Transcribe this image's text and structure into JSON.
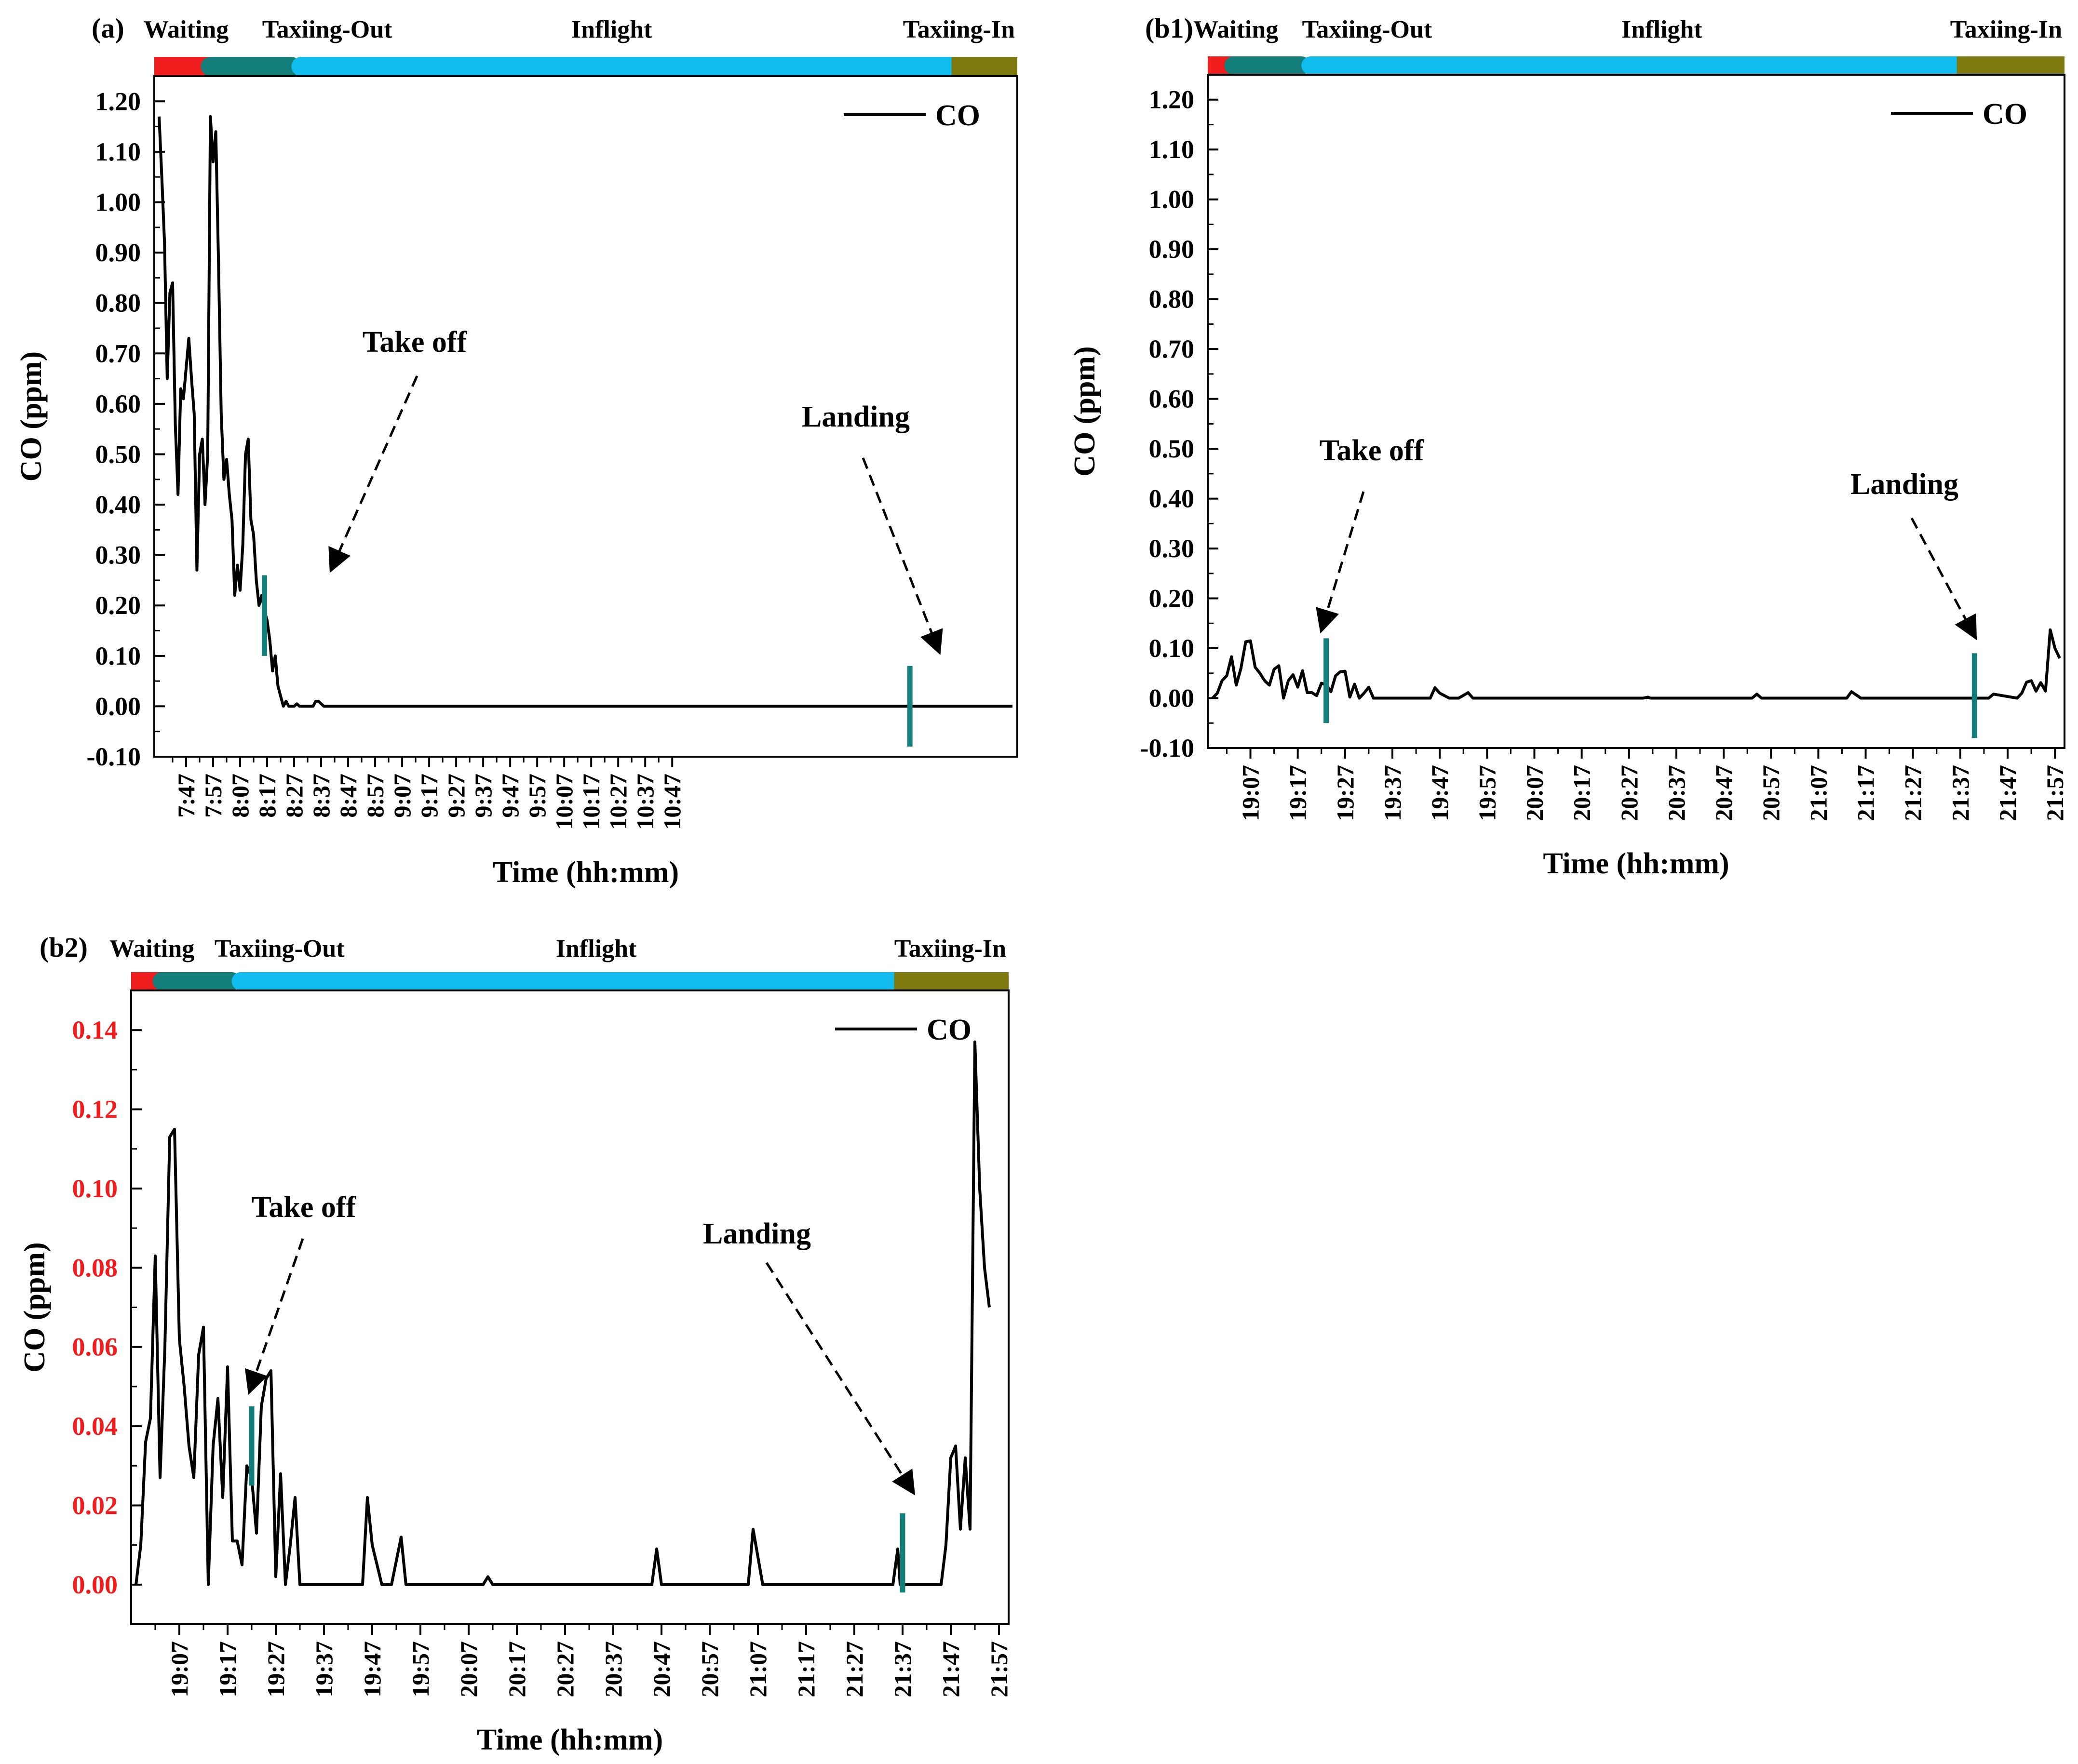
{
  "chart_data": [
    {
      "id": "a",
      "type": "line",
      "panel_label": "(a)",
      "phases": [
        {
          "name": "Waiting",
          "color": "#ee1c1c",
          "start": 0.0,
          "end": 0.065
        },
        {
          "name": "Taxiing-Out",
          "color": "#147f7a",
          "start": 0.065,
          "end": 0.17
        },
        {
          "name": "Inflight",
          "color": "#10bbee",
          "start": 0.17,
          "end": 0.935
        },
        {
          "name": "Taxiing-In",
          "color": "#7f7a10",
          "start": 0.935,
          "end": 1.0
        }
      ],
      "xlabel": "Time (hh:mm)",
      "ylabel": "CO (ppm)",
      "ylim": [
        -0.1,
        1.25
      ],
      "yticks": [
        "-0.10",
        "0.00",
        "0.10",
        "0.20",
        "0.30",
        "0.40",
        "0.50",
        "0.60",
        "0.70",
        "0.80",
        "0.90",
        "1.00",
        "1.10",
        "1.20"
      ],
      "ytick_color": "#000000",
      "xlim": [
        457,
        773
      ],
      "xticks": [
        "7:47",
        "7:57",
        "8:07",
        "8:17",
        "8:27",
        "8:37",
        "8:47",
        "8:57",
        "9:07",
        "9:17",
        "9:27",
        "9:37",
        "9:47",
        "9:57",
        "10:07",
        "10:17",
        "10:27",
        "10:37",
        "10:47"
      ],
      "xtick_values": [
        467,
        477,
        487,
        497,
        507,
        517,
        527,
        537,
        547,
        557,
        567,
        577,
        587,
        597,
        607,
        617,
        627,
        637,
        647
      ],
      "legend": "CO",
      "series": [
        {
          "name": "CO",
          "color": "#000000",
          "x": [
            457,
            458,
            459,
            460,
            461,
            462,
            463,
            464,
            465,
            466,
            467,
            468,
            469,
            470,
            471,
            472,
            473,
            474,
            475,
            476,
            477,
            478,
            479,
            480,
            481,
            482,
            483,
            484,
            485,
            486,
            487,
            488,
            489,
            490,
            491,
            492,
            493,
            494,
            495,
            496,
            497,
            498,
            499,
            500,
            501,
            502,
            503,
            504,
            505,
            506,
            507,
            508,
            509,
            510,
            511,
            512,
            513,
            514,
            515,
            516,
            517,
            518,
            519,
            520,
            521,
            522,
            523,
            525,
            530,
            540,
            560,
            600,
            640,
            660,
            680,
            700,
            720,
            740,
            773
          ],
          "y": [
            1.17,
            1.05,
            0.92,
            0.65,
            0.82,
            0.84,
            0.56,
            0.42,
            0.63,
            0.61,
            0.67,
            0.73,
            0.65,
            0.58,
            0.27,
            0.5,
            0.53,
            0.4,
            0.5,
            1.17,
            1.08,
            1.14,
            0.88,
            0.58,
            0.45,
            0.49,
            0.42,
            0.37,
            0.22,
            0.28,
            0.23,
            0.32,
            0.5,
            0.53,
            0.37,
            0.34,
            0.25,
            0.2,
            0.22,
            0.19,
            0.17,
            0.13,
            0.07,
            0.1,
            0.04,
            0.02,
            0.0,
            0.01,
            0.0,
            0.0,
            0.0,
            0.005,
            0.0,
            0.0,
            0.0,
            0.0,
            0.0,
            0.0,
            0.01,
            0.01,
            0.005,
            0.0,
            0.0,
            0.0,
            0.0,
            0.0,
            0.0,
            0.0,
            0.0,
            0.0,
            0.0,
            0.0,
            0.0,
            0.0,
            0.0,
            0.0,
            0.0,
            0.0,
            0.0
          ]
        }
      ],
      "markers": [
        {
          "label": "Take off",
          "x": 496,
          "ymin": 0.1,
          "ymax": 0.26
        },
        {
          "label": "Landing",
          "x": 735,
          "ymin": -0.08,
          "ymax": 0.08
        }
      ]
    },
    {
      "id": "b1",
      "type": "line",
      "panel_label": "(b1)",
      "phases": [
        {
          "name": "Waiting",
          "color": "#ee1c1c",
          "start": 0.0,
          "end": 0.03
        },
        {
          "name": "Taxiing-Out",
          "color": "#147f7a",
          "start": 0.03,
          "end": 0.12
        },
        {
          "name": "Inflight",
          "color": "#10bbee",
          "start": 0.12,
          "end": 0.885
        },
        {
          "name": "Taxiing-In",
          "color": "#7f7a10",
          "start": 0.885,
          "end": 1.0
        }
      ],
      "xlabel": "Time (hh:mm)",
      "ylabel": "CO (ppm)",
      "ylim": [
        -0.1,
        1.25
      ],
      "yticks": [
        "-0.10",
        "0.00",
        "0.10",
        "0.20",
        "0.30",
        "0.40",
        "0.50",
        "0.60",
        "0.70",
        "0.80",
        "0.90",
        "1.00",
        "1.10",
        "1.20"
      ],
      "ytick_color": "#000000",
      "xlim": [
        1139,
        1318
      ],
      "xticks": [
        "19:07",
        "19:17",
        "19:27",
        "19:37",
        "19:47",
        "19:57",
        "20:07",
        "20:17",
        "20:27",
        "20:37",
        "20:47",
        "20:57",
        "21:07",
        "21:17",
        "21:27",
        "21:37",
        "21:47",
        "21:57"
      ],
      "xtick_values": [
        1147,
        1157,
        1167,
        1177,
        1187,
        1197,
        1207,
        1217,
        1227,
        1237,
        1247,
        1257,
        1267,
        1277,
        1287,
        1297,
        1307,
        1317
      ],
      "legend": "CO",
      "series": [
        {
          "name": "CO",
          "color": "#000000",
          "x": [
            1139,
            1140,
            1141,
            1142,
            1143,
            1144,
            1145,
            1146,
            1147,
            1148,
            1149,
            1150,
            1151,
            1152,
            1153,
            1154,
            1155,
            1156,
            1157,
            1158,
            1159,
            1160,
            1161,
            1162,
            1163,
            1164,
            1165,
            1166,
            1167,
            1168,
            1169,
            1170,
            1171,
            1172,
            1173,
            1174,
            1175,
            1185,
            1186,
            1187,
            1189,
            1191,
            1193,
            1194,
            1195,
            1230,
            1231,
            1231.5,
            1232,
            1233,
            1253,
            1254,
            1255,
            1273,
            1274,
            1276,
            1278,
            1303,
            1304,
            1309,
            1310,
            1311,
            1312,
            1313,
            1314,
            1315,
            1316,
            1317,
            1318
          ],
          "y": [
            0.0,
            0.01,
            0.035,
            0.045,
            0.083,
            0.026,
            0.06,
            0.113,
            0.115,
            0.062,
            0.05,
            0.035,
            0.026,
            0.058,
            0.065,
            0.0,
            0.035,
            0.047,
            0.022,
            0.055,
            0.011,
            0.011,
            0.005,
            0.03,
            0.027,
            0.013,
            0.045,
            0.053,
            0.054,
            0.002,
            0.028,
            0.0,
            0.01,
            0.022,
            0.0,
            0.0,
            0.0,
            0.0,
            0.021,
            0.01,
            0.0,
            0.0,
            0.011,
            0.0,
            0.0,
            0.0,
            0.002,
            0.0,
            0.0,
            0.0,
            0.0,
            0.008,
            0.0,
            0.0,
            0.013,
            0.0,
            0.0,
            0.0,
            0.008,
            0.0,
            0.01,
            0.032,
            0.035,
            0.014,
            0.031,
            0.014,
            0.137,
            0.1,
            0.08
          ]
        }
      ],
      "markers": [
        {
          "label": "Take off",
          "x": 1163,
          "ymin": -0.05,
          "ymax": 0.12
        },
        {
          "label": "Landing",
          "x": 1300,
          "ymin": -0.08,
          "ymax": 0.09
        }
      ]
    },
    {
      "id": "b2",
      "type": "line",
      "panel_label": "(b2)",
      "phases": [
        {
          "name": "Waiting",
          "color": "#ee1c1c",
          "start": 0.0,
          "end": 0.035
        },
        {
          "name": "Taxiing-Out",
          "color": "#147f7a",
          "start": 0.035,
          "end": 0.125
        },
        {
          "name": "Inflight",
          "color": "#10bbee",
          "start": 0.125,
          "end": 0.88
        },
        {
          "name": "Taxiing-In",
          "color": "#7f7a10",
          "start": 0.88,
          "end": 1.0
        }
      ],
      "xlabel": "Time (hh:mm)",
      "ylabel": "CO (ppm)",
      "ylim": [
        -0.01,
        0.15
      ],
      "yticks": [
        "0.00",
        "0.02",
        "0.04",
        "0.06",
        "0.08",
        "0.10",
        "0.12",
        "0.14"
      ],
      "ytick_color": "#ee1c1c",
      "xlim": [
        1138,
        1318
      ],
      "xticks": [
        "19:07",
        "19:17",
        "19:27",
        "19:37",
        "19:47",
        "19:57",
        "20:07",
        "20:17",
        "20:27",
        "20:37",
        "20:47",
        "20:57",
        "21:07",
        "21:17",
        "21:27",
        "21:37",
        "21:47",
        "21:57"
      ],
      "xtick_values": [
        1147,
        1157,
        1167,
        1177,
        1187,
        1197,
        1207,
        1217,
        1227,
        1237,
        1247,
        1257,
        1267,
        1277,
        1287,
        1297,
        1307,
        1317
      ],
      "legend": "CO",
      "series": [
        {
          "name": "CO",
          "color": "#000000",
          "x": [
            1138,
            1139,
            1140,
            1141,
            1142,
            1143,
            1144,
            1145,
            1146,
            1147,
            1148,
            1149,
            1150,
            1151,
            1152,
            1153,
            1154,
            1155,
            1156,
            1157,
            1158,
            1159,
            1160,
            1161,
            1162,
            1163,
            1164,
            1165,
            1166,
            1167,
            1168,
            1169,
            1170,
            1171,
            1172,
            1173,
            1174,
            1185,
            1186,
            1187,
            1189,
            1191,
            1193,
            1194,
            1195,
            1210,
            1211,
            1212,
            1213,
            1245,
            1246,
            1247,
            1265,
            1266,
            1268,
            1270,
            1295,
            1296,
            1296.5,
            1297,
            1299,
            1305,
            1306,
            1307,
            1308,
            1309,
            1310,
            1311,
            1312,
            1313,
            1314,
            1315
          ],
          "y": [
            0.0,
            0.01,
            0.036,
            0.042,
            0.083,
            0.027,
            0.06,
            0.113,
            0.115,
            0.062,
            0.05,
            0.035,
            0.027,
            0.058,
            0.065,
            0.0,
            0.035,
            0.047,
            0.022,
            0.055,
            0.011,
            0.011,
            0.005,
            0.03,
            0.027,
            0.013,
            0.045,
            0.052,
            0.054,
            0.002,
            0.028,
            0.0,
            0.01,
            0.022,
            0.0,
            0.0,
            0.0,
            0.0,
            0.022,
            0.01,
            0.0,
            0.0,
            0.012,
            0.0,
            0.0,
            0.0,
            0.002,
            0.0,
            0.0,
            0.0,
            0.009,
            0.0,
            0.0,
            0.014,
            0.0,
            0.0,
            0.0,
            0.009,
            0.0,
            0.0,
            0.0,
            0.0,
            0.01,
            0.032,
            0.035,
            0.014,
            0.032,
            0.014,
            0.137,
            0.1,
            0.08,
            0.07
          ]
        }
      ],
      "markers": [
        {
          "label": "Take off",
          "x": 1162,
          "ymin": 0.025,
          "ymax": 0.045
        },
        {
          "label": "Landing",
          "x": 1297,
          "ymin": -0.002,
          "ymax": 0.018
        }
      ]
    }
  ]
}
